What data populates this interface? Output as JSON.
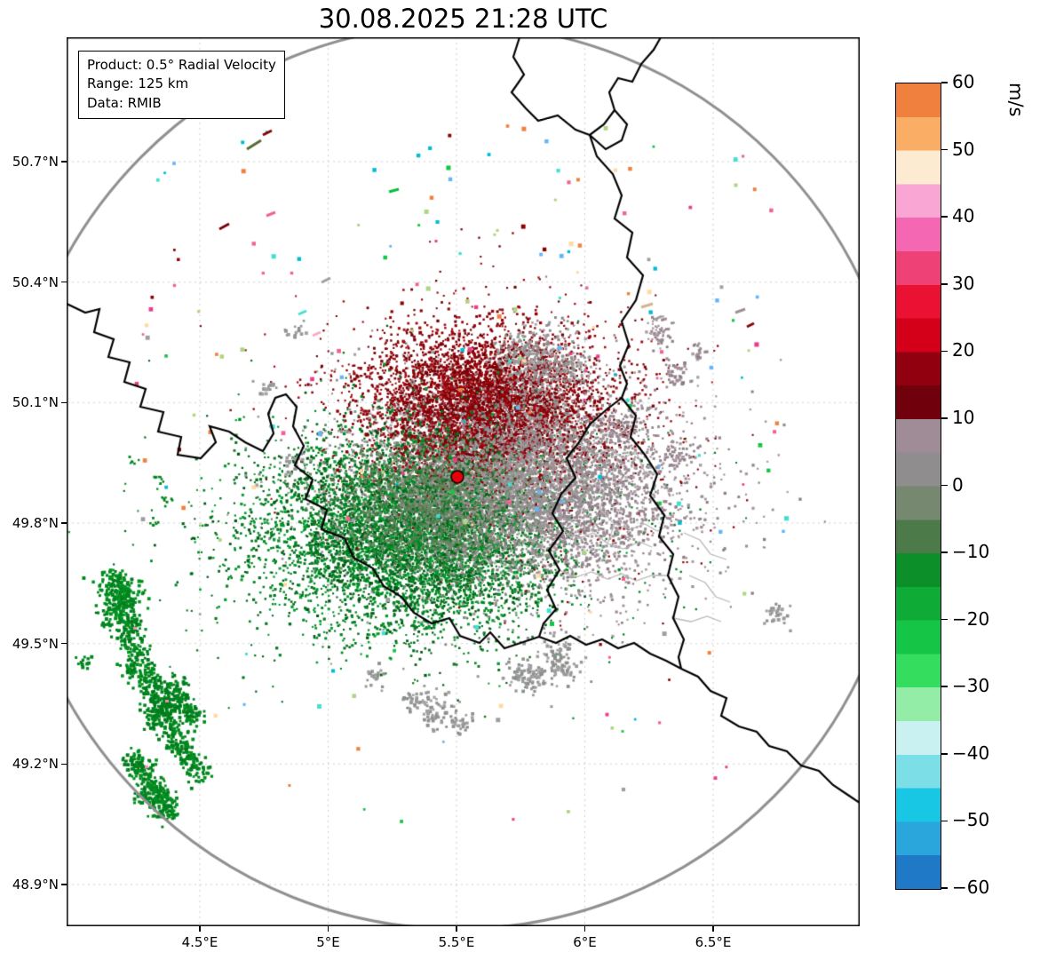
{
  "title": "30.08.2025 21:28 UTC",
  "info_box": {
    "product": "Product: 0.5° Radial Velocity",
    "range": "Range: 125 km",
    "data": "Data: RMIB"
  },
  "axes": {
    "x_ticks": [
      "4.5°E",
      "5°E",
      "5.5°E",
      "6°E",
      "6.5°E"
    ],
    "x_tick_values": [
      4.5,
      5.0,
      5.5,
      6.0,
      6.5
    ],
    "y_ticks": [
      "50.7°N",
      "50.4°N",
      "50.1°N",
      "49.8°N",
      "49.5°N",
      "49.2°N",
      "48.9°N"
    ],
    "y_tick_values": [
      50.7,
      50.4,
      50.1,
      49.8,
      49.5,
      49.2,
      48.9
    ]
  },
  "colorbar": {
    "label": "m/s",
    "min": -60,
    "max": 60,
    "tick_values": [
      60,
      50,
      40,
      30,
      20,
      10,
      0,
      -10,
      -20,
      -30,
      -40,
      -50,
      -60
    ],
    "tick_labels": [
      "60",
      "50",
      "40",
      "30",
      "20",
      "10",
      "0",
      "−10",
      "−20",
      "−30",
      "−40",
      "−50",
      "−60"
    ],
    "segments": [
      {
        "from": -60,
        "to": -55,
        "color": "#2079c6"
      },
      {
        "from": -55,
        "to": -50,
        "color": "#2aa6dc"
      },
      {
        "from": -50,
        "to": -45,
        "color": "#18c7e4"
      },
      {
        "from": -45,
        "to": -40,
        "color": "#7cdfe8"
      },
      {
        "from": -40,
        "to": -35,
        "color": "#c9f1f2"
      },
      {
        "from": -35,
        "to": -30,
        "color": "#93eda7"
      },
      {
        "from": -30,
        "to": -25,
        "color": "#35dd5e"
      },
      {
        "from": -25,
        "to": -20,
        "color": "#14c546"
      },
      {
        "from": -20,
        "to": -15,
        "color": "#0eab36"
      },
      {
        "from": -15,
        "to": -10,
        "color": "#0c8f28"
      },
      {
        "from": -10,
        "to": -5,
        "color": "#4c7a48"
      },
      {
        "from": -5,
        "to": 0,
        "color": "#778871"
      },
      {
        "from": 0,
        "to": 5,
        "color": "#8f8d8d"
      },
      {
        "from": 5,
        "to": 10,
        "color": "#a08c96"
      },
      {
        "from": 10,
        "to": 15,
        "color": "#6f000c"
      },
      {
        "from": 15,
        "to": 20,
        "color": "#91000f"
      },
      {
        "from": 20,
        "to": 25,
        "color": "#d40019"
      },
      {
        "from": 25,
        "to": 30,
        "color": "#ea1133"
      },
      {
        "from": 30,
        "to": 35,
        "color": "#ee4277"
      },
      {
        "from": 35,
        "to": 40,
        "color": "#f467b2"
      },
      {
        "from": 40,
        "to": 45,
        "color": "#f9a6d4"
      },
      {
        "from": 45,
        "to": 50,
        "color": "#fcebd0"
      },
      {
        "from": 50,
        "to": 55,
        "color": "#f9ad65"
      },
      {
        "from": 55,
        "to": 60,
        "color": "#f0803e"
      }
    ]
  },
  "chart_data": {
    "type": "heatmap",
    "title": "30.08.2025 21:28 UTC",
    "product": "0.5° Radial Velocity",
    "range_km": 125,
    "data_source": "RMIB",
    "units": "m/s",
    "colormap_range": [
      -60,
      60
    ],
    "colorbar_ticks": [
      60,
      50,
      40,
      30,
      20,
      10,
      0,
      -10,
      -20,
      -30,
      -40,
      -50,
      -60
    ],
    "radar_site": {
      "lon_deg_e": 5.5,
      "lat_deg_n": 49.91,
      "marker": "red dot with black edge"
    },
    "x_axis": {
      "ticks_deg_e": [
        4.5,
        5.0,
        5.5,
        6.0,
        6.5
      ],
      "range_deg_e": [
        3.98,
        7.07
      ]
    },
    "y_axis": {
      "ticks_deg_n": [
        50.7,
        50.4,
        50.1,
        49.8,
        49.5,
        49.2,
        48.9
      ],
      "range_deg_n": [
        48.8,
        51.01
      ]
    },
    "grid": true,
    "legend_position": "right-colorbar",
    "map_layers": [
      "125 km range ring (thick gray circle)",
      "country borders (black): Belgium, France, Luxembourg, Germany, Netherlands",
      "province/canton borders (light gray) around Luxembourg",
      "dashed lat/lon graticule"
    ],
    "velocity_field_summary": [
      {
        "region": "north-of-radar",
        "approx_center": {
          "lon": 5.55,
          "lat": 50.05
        },
        "velocity_ms": [
          5,
          20
        ],
        "appearance": "dense dark-red speckle (outbound)"
      },
      {
        "region": "southwest-of-radar",
        "approx_center": {
          "lon": 5.28,
          "lat": 49.77
        },
        "velocity_ms": [
          -25,
          -5
        ],
        "appearance": "dense green speckle (inbound)"
      },
      {
        "region": "around-radar-and-east",
        "approx_center": {
          "lon": 5.95,
          "lat": 49.87
        },
        "velocity_ms": [
          -5,
          8
        ],
        "appearance": "gray / mauve speckle (near-zero velocities)"
      },
      {
        "region": "far-southwest-band",
        "approx_center": {
          "lon": 4.25,
          "lat": 49.35
        },
        "velocity_ms": [
          -20,
          -10
        ],
        "appearance": "solid green clutter patches in a NW-SE band"
      },
      {
        "region": "scattered-echoes",
        "velocity_ms": [
          -60,
          60
        ],
        "appearance": "isolated multicolor specks (pink, cyan, green, dark red, gray) across the range ring"
      },
      {
        "region": "small-gray-patches",
        "velocity_ms": [
          -5,
          8
        ],
        "appearance": "isolated gray clutter patches south and northeast of the radar"
      }
    ]
  }
}
